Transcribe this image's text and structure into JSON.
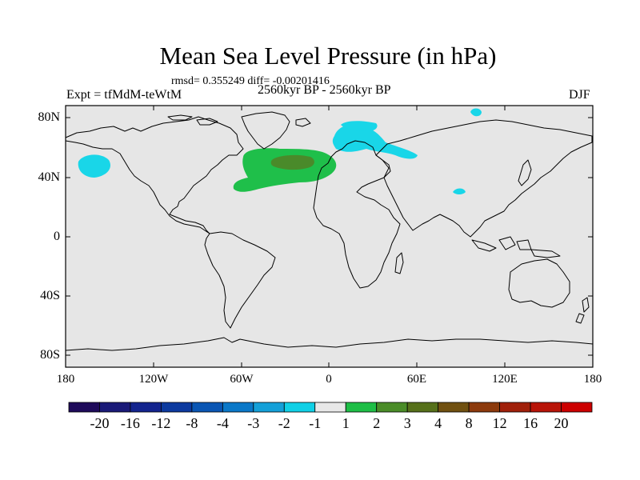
{
  "title": "Mean Sea Level Pressure (in hPa)",
  "stats": "rmsd= 0.355249 diff= -0.00201416",
  "experiment": "Expt = tfMdM-teWtM",
  "period": "2560kyr BP - 2560kyr BP",
  "season": "DJF",
  "axes": {
    "lat_labels": [
      "80N",
      "40N",
      "0",
      "40S",
      "80S"
    ],
    "lon_labels": [
      "180",
      "120W",
      "60W",
      "0",
      "60E",
      "120E",
      "180"
    ]
  },
  "colorbar": {
    "labels": [
      "-20",
      "-16",
      "-12",
      "-8",
      "-4",
      "-3",
      "-2",
      "-1",
      "1",
      "2",
      "3",
      "4",
      "8",
      "12",
      "16",
      "20"
    ],
    "colors": [
      "#1e0a5a",
      "#1a1a78",
      "#13248e",
      "#0c3a9f",
      "#0a56b4",
      "#0a78c8",
      "#14a0d8",
      "#10d0e6",
      "#e8e8e8",
      "#1ebe46",
      "#4a8c28",
      "#56701a",
      "#705010",
      "#8c3a0c",
      "#a0200a",
      "#b81408",
      "#cc0000"
    ]
  },
  "colors": {
    "land_ocean": "#e6e6e6",
    "coast": "#000000",
    "neg_cyan": "#19d6e8",
    "pos_green": "#1fbf4a",
    "pos_olive": "#4a8a2a"
  }
}
